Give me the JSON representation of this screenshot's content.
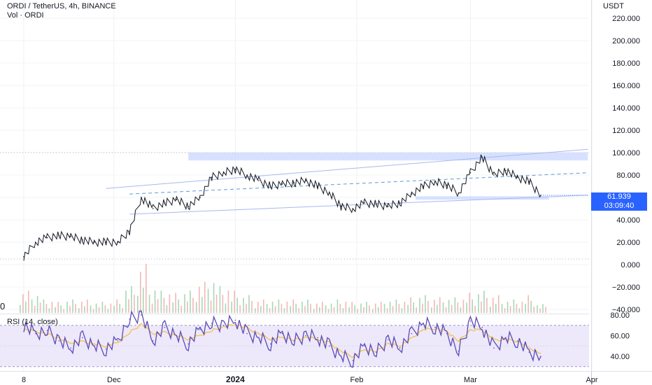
{
  "header": {
    "title": "ORDI / TetherUS, 4h, BINANCE",
    "volume_label": "Vol · ORDI",
    "rsi_label": "RSI (14, close)",
    "left_edge_label": "0"
  },
  "axis": {
    "currency": "USDT",
    "price_ticks": [
      "220.000",
      "200.000",
      "180.000",
      "160.000",
      "140.000",
      "120.000",
      "100.000",
      "80.000",
      "60.000",
      "40.000",
      "20.000",
      "0.000",
      "−20.000",
      "−40.000"
    ],
    "price_values": [
      220,
      200,
      180,
      160,
      140,
      120,
      100,
      80,
      60,
      40,
      20,
      0,
      -20,
      -40
    ],
    "rsi_ticks": [
      "80.00",
      "60.00",
      "40.00"
    ],
    "rsi_values": [
      80,
      60,
      40
    ],
    "time_ticks": [
      "8",
      "Dec",
      "2024",
      "Feb",
      "Mar",
      "Apr"
    ]
  },
  "last_price": {
    "value": "61.939",
    "countdown": "03:09:40",
    "color": "#2962ff"
  },
  "colors": {
    "price": "#131722",
    "trendline": "#a8b8f0",
    "midline": "#5b9bd5",
    "zone": "#c9d7ff",
    "rsi": "#5b4bb7",
    "rsi_ma": "#f2c14e",
    "rsi_band": "#ede9fb",
    "vol_up": "#a7d7b7",
    "vol_down": "#f2b8b5"
  },
  "chart_data": {
    "type": "line",
    "title": "ORDI / TetherUS, 4h, BINANCE",
    "ylabel": "USDT",
    "ylim": [
      -40,
      230
    ],
    "x": [
      "2023-11-08",
      "2023-11-11",
      "2023-11-14",
      "2023-11-17",
      "2023-11-20",
      "2023-11-23",
      "2023-11-26",
      "2023-11-29",
      "2023-12-02",
      "2023-12-05",
      "2023-12-08",
      "2023-12-11",
      "2023-12-14",
      "2023-12-17",
      "2023-12-20",
      "2023-12-23",
      "2023-12-26",
      "2023-12-29",
      "2024-01-01",
      "2024-01-04",
      "2024-01-07",
      "2024-01-10",
      "2024-01-13",
      "2024-01-16",
      "2024-01-19",
      "2024-01-22",
      "2024-01-25",
      "2024-01-28",
      "2024-01-31",
      "2024-02-03",
      "2024-02-06",
      "2024-02-09",
      "2024-02-12",
      "2024-02-15",
      "2024-02-18",
      "2024-02-21",
      "2024-02-24",
      "2024-02-27",
      "2024-03-01",
      "2024-03-04",
      "2024-03-07",
      "2024-03-10",
      "2024-03-13",
      "2024-03-16",
      "2024-03-19"
    ],
    "series": [
      {
        "values": [
          7,
          20,
          24,
          26,
          25,
          22,
          20,
          20,
          20,
          30,
          60,
          50,
          55,
          58,
          52,
          60,
          78,
          82,
          85,
          80,
          75,
          70,
          72,
          73,
          75,
          70,
          64,
          52,
          50,
          55,
          54,
          52,
          55,
          63,
          70,
          74,
          71,
          64,
          82,
          96,
          80,
          84,
          78,
          74,
          62
        ]
      }
    ],
    "volume": [
      10,
      9,
      6,
      5,
      6,
      6,
      5,
      5,
      6,
      12,
      22,
      12,
      10,
      9,
      10,
      14,
      16,
      12,
      10,
      8,
      6,
      6,
      6,
      6,
      6,
      5,
      5,
      6,
      5,
      5,
      5,
      6,
      6,
      7,
      8,
      7,
      7,
      7,
      9,
      10,
      8,
      6,
      6,
      8,
      4
    ],
    "rsi": {
      "ylim": [
        30,
        85
      ],
      "bands": [
        30,
        70
      ],
      "values": [
        70,
        62,
        65,
        55,
        48,
        58,
        50,
        47,
        55,
        76,
        80,
        55,
        68,
        60,
        52,
        66,
        72,
        70,
        75,
        62,
        58,
        52,
        62,
        55,
        60,
        58,
        50,
        40,
        36,
        50,
        44,
        56,
        48,
        62,
        72,
        68,
        62,
        45,
        74,
        68,
        48,
        58,
        55,
        44,
        40
      ],
      "ma": [
        66,
        64,
        62,
        57,
        53,
        54,
        52,
        50,
        53,
        63,
        71,
        62,
        63,
        60,
        57,
        60,
        65,
        68,
        71,
        67,
        62,
        57,
        58,
        56,
        58,
        57,
        53,
        45,
        40,
        46,
        45,
        52,
        50,
        57,
        66,
        67,
        64,
        55,
        65,
        66,
        56,
        56,
        55,
        48,
        43
      ]
    },
    "annotations": [
      {
        "type": "trendline",
        "from": [
          "2023-11-29",
          68
        ],
        "to": [
          "2024-03-31",
          103
        ]
      },
      {
        "type": "trendline",
        "from": [
          "2023-12-05",
          45
        ],
        "to": [
          "2024-03-31",
          62
        ]
      },
      {
        "type": "dashed_midline",
        "from": [
          "2023-12-05",
          63
        ],
        "to": [
          "2024-03-31",
          82
        ]
      },
      {
        "type": "zone",
        "x": [
          "2023-12-20",
          "2024-03-31"
        ],
        "y": [
          93,
          100
        ]
      },
      {
        "type": "zone",
        "x": [
          "2024-02-16",
          "2024-03-21"
        ],
        "y": [
          58,
          61
        ]
      }
    ]
  }
}
